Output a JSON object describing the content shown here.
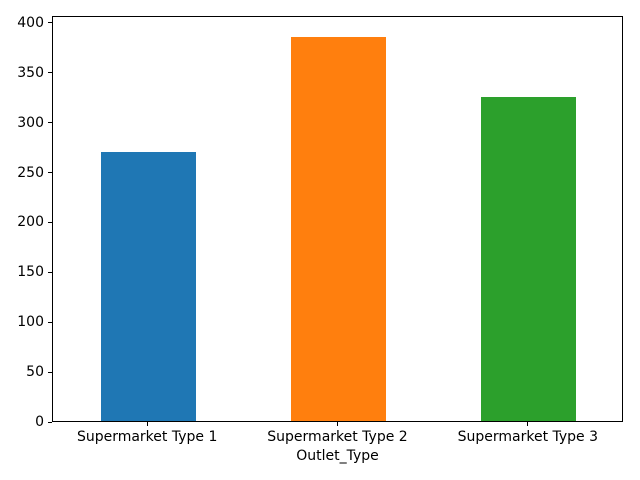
{
  "chart_data": {
    "type": "bar",
    "title": "",
    "xlabel": "Outlet_Type",
    "ylabel": "",
    "categories": [
      "Supermarket Type 1",
      "Supermarket Type 2",
      "Supermarket Type 3"
    ],
    "values": [
      270,
      385,
      325
    ],
    "bar_colors": [
      "#1f77b4",
      "#ff7f0e",
      "#2ca02c"
    ],
    "yticks": [
      0,
      50,
      100,
      150,
      200,
      250,
      300,
      350,
      400
    ],
    "ylim": [
      0,
      407
    ],
    "grid": false,
    "legend": null,
    "axis_color": "#000000",
    "background_color": "#ffffff"
  }
}
